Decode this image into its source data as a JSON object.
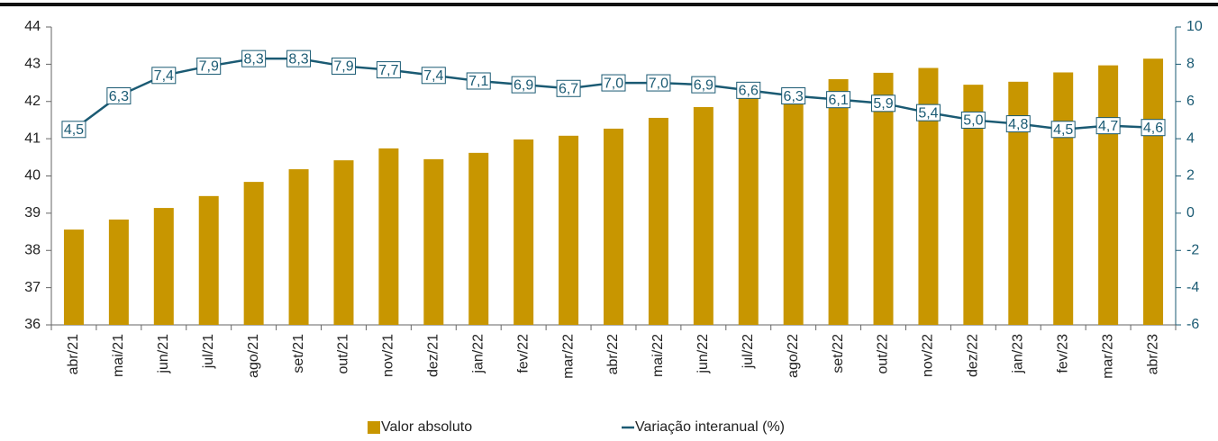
{
  "chart_data": {
    "type": "bar",
    "categories": [
      "abr/21",
      "mai/21",
      "jun/21",
      "jul/21",
      "ago/21",
      "set/21",
      "out/21",
      "nov/21",
      "dez/21",
      "jan/22",
      "fev/22",
      "mar/22",
      "abr/22",
      "mai/22",
      "jun/22",
      "jul/22",
      "ago/22",
      "set/22",
      "out/22",
      "nov/22",
      "dez/22",
      "jan/23",
      "fev/23",
      "mar/23",
      "abr/23"
    ],
    "series": [
      {
        "name": "Valor absoluto",
        "type": "bar",
        "color": "#c89600",
        "values": [
          38.56,
          38.83,
          39.14,
          39.46,
          39.84,
          40.18,
          40.42,
          40.74,
          40.45,
          40.62,
          40.98,
          41.08,
          41.27,
          41.56,
          41.85,
          42.1,
          42.3,
          42.6,
          42.77,
          42.9,
          42.45,
          42.53,
          42.78,
          42.97,
          43.15
        ]
      },
      {
        "name": "Variação interanual (%)",
        "type": "line",
        "axis": "y2",
        "color": "#1a5a73",
        "values": [
          4.5,
          6.3,
          7.4,
          7.9,
          8.3,
          8.3,
          7.9,
          7.7,
          7.4,
          7.1,
          6.9,
          6.7,
          7.0,
          7.0,
          6.9,
          6.6,
          6.3,
          6.1,
          5.9,
          5.4,
          5.0,
          4.8,
          4.5,
          4.7,
          4.6
        ],
        "value_labels": [
          "4,5",
          "6,3",
          "7,4",
          "7,9",
          "8,3",
          "8,3",
          "7,9",
          "7,7",
          "7,4",
          "7,1",
          "6,9",
          "6,7",
          "7,0",
          "7,0",
          "6,9",
          "6,6",
          "6,3",
          "6,1",
          "5,9",
          "5,4",
          "5,0",
          "4,8",
          "4,5",
          "4,7",
          "4,6"
        ]
      }
    ],
    "ylim": [
      36,
      44
    ],
    "yticks": [
      36,
      37,
      38,
      39,
      40,
      41,
      42,
      43,
      44
    ],
    "y2lim": [
      -6,
      10
    ],
    "y2ticks": [
      -6,
      -4,
      -2,
      0,
      2,
      4,
      6,
      8,
      10
    ],
    "y2_color": "#1a5a73",
    "legend": "bottom"
  }
}
